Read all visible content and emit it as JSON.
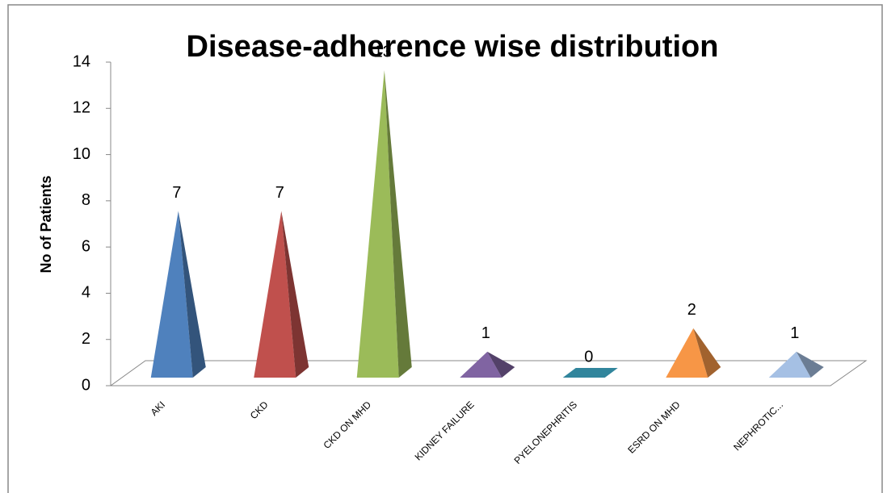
{
  "chart_data": {
    "type": "pyramid",
    "title": "Disease-adherence wise distribution",
    "y_label": "No of Patients",
    "categories": [
      "AKI",
      "CKD",
      "CKD ON MHD",
      "KIDNEY FAILURE",
      "PYELONEPHRITIS",
      "ESRD ON MHD",
      "NEPHROTIC..."
    ],
    "values": [
      7,
      7,
      13,
      1,
      0,
      2,
      1
    ],
    "colors": [
      "#4f81bd",
      "#c0504d",
      "#9bbb59",
      "#8064a2",
      "#31859c",
      "#f79646",
      "#a5c0e4"
    ],
    "ylim": [
      0,
      14
    ],
    "yticks": [
      0,
      2,
      4,
      6,
      8,
      10,
      12,
      14
    ]
  }
}
